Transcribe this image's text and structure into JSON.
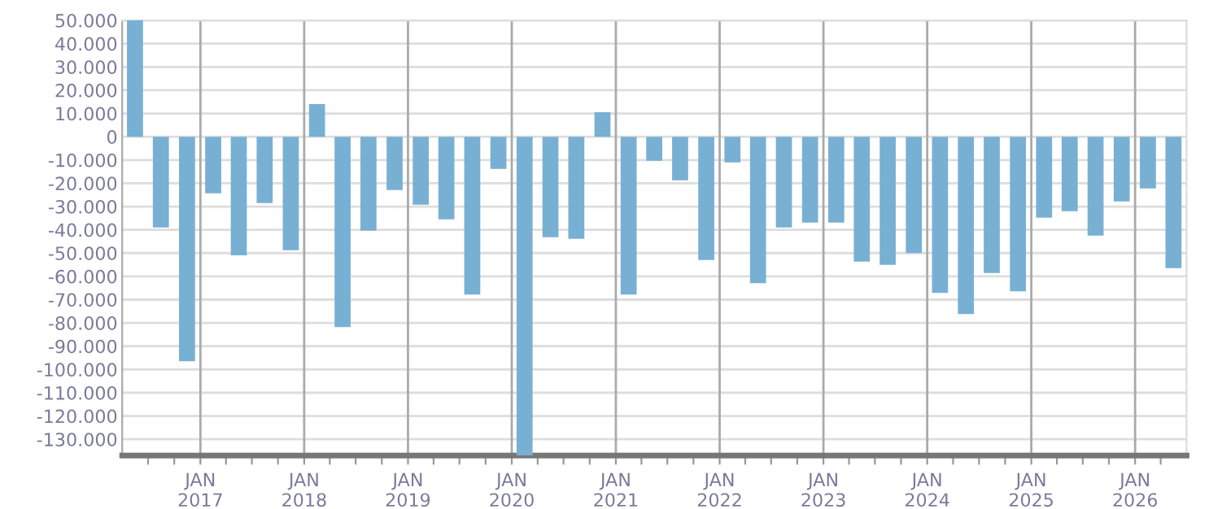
{
  "chart_data": {
    "type": "bar",
    "color": "#78b0d3",
    "x": [
      "2016-05-16",
      "2016-08-15",
      "2016-11-15",
      "2017-02-15",
      "2017-05-16",
      "2017-08-15",
      "2017-11-15",
      "2018-02-15",
      "2018-05-16",
      "2018-08-15",
      "2018-11-15",
      "2019-02-15",
      "2019-05-16",
      "2019-08-15",
      "2019-11-15",
      "2020-02-15",
      "2020-05-16",
      "2020-08-15",
      "2020-11-15",
      "2021-02-15",
      "2021-05-16",
      "2021-08-15",
      "2021-11-15",
      "2022-02-15",
      "2022-05-16",
      "2022-08-15",
      "2022-11-15",
      "2023-02-15",
      "2023-05-16",
      "2023-08-15",
      "2023-11-15",
      "2024-02-15",
      "2024-05-16",
      "2024-08-15",
      "2024-11-15",
      "2025-02-15",
      "2025-05-16",
      "2025-08-15",
      "2025-11-15",
      "2026-02-15",
      "2026-05-16"
    ],
    "values": [
      50000,
      -39000,
      -96500,
      -24300,
      -51000,
      -28500,
      -48800,
      14000,
      -81800,
      -40400,
      -22900,
      -29200,
      -35500,
      -67800,
      -13800,
      -137000,
      -43200,
      -43900,
      10500,
      -67800,
      -10300,
      -18700,
      -53000,
      -11000,
      -62900,
      -39000,
      -36900,
      -36900,
      -53700,
      -55100,
      -50000,
      -67100,
      -76200,
      -58600,
      -66400,
      -34800,
      -32000,
      -42500,
      -27800,
      -22200,
      -56500
    ],
    "xlim": [
      "2016-04-01",
      "2026-07-01"
    ],
    "xticks": [
      {
        "value": "2016-07-01",
        "label": null
      },
      {
        "value": "2016-10-01",
        "label": null
      },
      {
        "value": "2017-01-01",
        "label": "JAN\n2017"
      },
      {
        "value": "2017-04-01",
        "label": null
      },
      {
        "value": "2017-07-01",
        "label": null
      },
      {
        "value": "2017-10-01",
        "label": null
      },
      {
        "value": "2018-01-01",
        "label": "JAN\n2018"
      },
      {
        "value": "2018-04-01",
        "label": null
      },
      {
        "value": "2018-07-01",
        "label": null
      },
      {
        "value": "2018-10-01",
        "label": null
      },
      {
        "value": "2019-01-01",
        "label": "JAN\n2019"
      },
      {
        "value": "2019-04-01",
        "label": null
      },
      {
        "value": "2019-07-01",
        "label": null
      },
      {
        "value": "2019-10-01",
        "label": null
      },
      {
        "value": "2020-01-01",
        "label": "JAN\n2020"
      },
      {
        "value": "2020-04-01",
        "label": null
      },
      {
        "value": "2020-07-01",
        "label": null
      },
      {
        "value": "2020-10-01",
        "label": null
      },
      {
        "value": "2021-01-01",
        "label": "JAN\n2021"
      },
      {
        "value": "2021-04-01",
        "label": null
      },
      {
        "value": "2021-07-01",
        "label": null
      },
      {
        "value": "2021-10-01",
        "label": null
      },
      {
        "value": "2022-01-01",
        "label": "JAN\n2022"
      },
      {
        "value": "2022-04-01",
        "label": null
      },
      {
        "value": "2022-07-01",
        "label": null
      },
      {
        "value": "2022-10-01",
        "label": null
      },
      {
        "value": "2023-01-01",
        "label": "JAN\n2023"
      },
      {
        "value": "2023-04-01",
        "label": null
      },
      {
        "value": "2023-07-01",
        "label": null
      },
      {
        "value": "2023-10-01",
        "label": null
      },
      {
        "value": "2024-01-01",
        "label": "JAN\n2024"
      },
      {
        "value": "2024-04-01",
        "label": null
      },
      {
        "value": "2024-07-01",
        "label": null
      },
      {
        "value": "2024-10-01",
        "label": null
      },
      {
        "value": "2025-01-01",
        "label": "JAN\n2025"
      },
      {
        "value": "2025-04-01",
        "label": null
      },
      {
        "value": "2025-07-01",
        "label": null
      },
      {
        "value": "2025-10-01",
        "label": null
      },
      {
        "value": "2026-01-01",
        "label": "JAN\n2026"
      },
      {
        "value": "2026-04-01",
        "label": null
      }
    ],
    "ylim": [
      -137000,
      50000
    ],
    "yticks": [
      {
        "value": 50000,
        "label": "50.000"
      },
      {
        "value": 40000,
        "label": "40.000"
      },
      {
        "value": 30000,
        "label": "30.000"
      },
      {
        "value": 20000,
        "label": "20.000"
      },
      {
        "value": 10000,
        "label": "10.000"
      },
      0,
      {
        "value": -10000,
        "label": "-10.000"
      },
      {
        "value": -20000,
        "label": "-20.000"
      },
      {
        "value": -30000,
        "label": "-30.000"
      },
      {
        "value": -40000,
        "label": "-40.000"
      },
      {
        "value": -50000,
        "label": "-50.000"
      },
      {
        "value": -60000,
        "label": "-60.000"
      },
      {
        "value": -70000,
        "label": "-70.000"
      },
      {
        "value": -80000,
        "label": "-80.000"
      },
      {
        "value": -90000,
        "label": "-90.000"
      },
      {
        "value": -100000,
        "label": "-100.000"
      },
      {
        "value": -110000,
        "label": "-110.000"
      },
      {
        "value": -120000,
        "label": "-120.000"
      },
      {
        "value": -130000,
        "label": "-130.000"
      }
    ],
    "grid": true
  }
}
